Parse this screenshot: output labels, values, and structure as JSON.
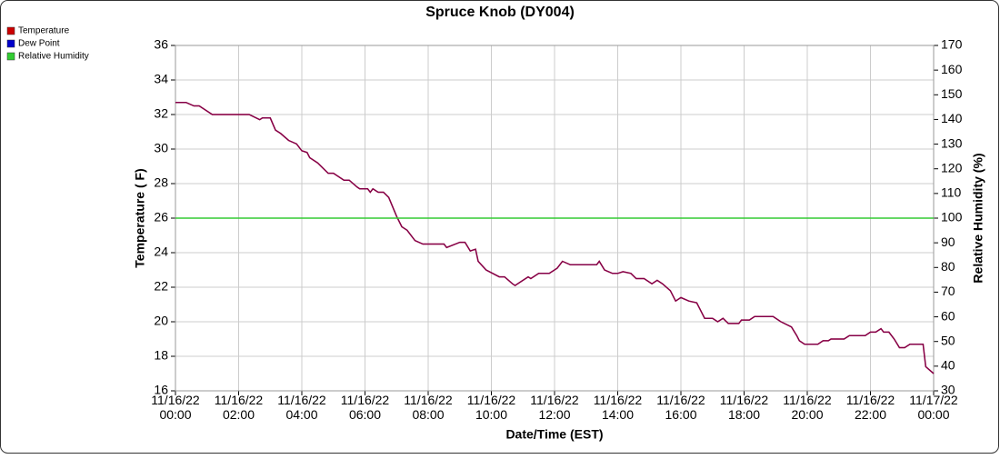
{
  "chart_data": {
    "type": "line",
    "title": "Spruce Knob (DY004)",
    "x_label": "Date/Time (EST)",
    "y_label": "Temperature ( F)",
    "y2_label": "Relative Humidity (%)",
    "x": [
      "11/16/22 00:00",
      "11/16/22 00:20",
      "11/16/22 00:35",
      "11/16/22 00:45",
      "11/16/22 01:10",
      "11/16/22 02:20",
      "11/16/22 02:40",
      "11/16/22 02:45",
      "11/16/22 03:00",
      "11/16/22 03:10",
      "11/16/22 03:20",
      "11/16/22 03:35",
      "11/16/22 03:50",
      "11/16/22 04:00",
      "11/16/22 04:10",
      "11/16/22 04:15",
      "11/16/22 04:30",
      "11/16/22 04:50",
      "11/16/22 05:00",
      "11/16/22 05:20",
      "11/16/22 05:30",
      "11/16/22 05:45",
      "11/16/22 05:50",
      "11/16/22 06:05",
      "11/16/22 06:10",
      "11/16/22 06:15",
      "11/16/22 06:25",
      "11/16/22 06:35",
      "11/16/22 06:45",
      "11/16/22 07:00",
      "11/16/22 07:10",
      "11/16/22 07:20",
      "11/16/22 07:35",
      "11/16/22 07:50",
      "11/16/22 08:30",
      "11/16/22 08:35",
      "11/16/22 09:00",
      "11/16/22 09:10",
      "11/16/22 09:20",
      "11/16/22 09:30",
      "11/16/22 09:35",
      "11/16/22 09:50",
      "11/16/22 10:15",
      "11/16/22 10:25",
      "11/16/22 10:40",
      "11/16/22 10:45",
      "11/16/22 10:55",
      "11/16/22 11:10",
      "11/16/22 11:15",
      "11/16/22 11:30",
      "11/16/22 11:50",
      "11/16/22 12:05",
      "11/16/22 12:15",
      "11/16/22 12:30",
      "11/16/22 13:20",
      "11/16/22 13:25",
      "11/16/22 13:35",
      "11/16/22 13:50",
      "11/16/22 14:00",
      "11/16/22 14:10",
      "11/16/22 14:25",
      "11/16/22 14:35",
      "11/16/22 14:50",
      "11/16/22 15:05",
      "11/16/22 15:15",
      "11/16/22 15:25",
      "11/16/22 15:40",
      "11/16/22 15:50",
      "11/16/22 16:00",
      "11/16/22 16:15",
      "11/16/22 16:30",
      "11/16/22 16:35",
      "11/16/22 16:45",
      "11/16/22 17:00",
      "11/16/22 17:10",
      "11/16/22 17:20",
      "11/16/22 17:30",
      "11/16/22 17:50",
      "11/16/22 17:55",
      "11/16/22 18:10",
      "11/16/22 18:20",
      "11/16/22 18:55",
      "11/16/22 19:10",
      "11/16/22 19:30",
      "11/16/22 19:40",
      "11/16/22 19:45",
      "11/16/22 19:55",
      "11/16/22 20:20",
      "11/16/22 20:30",
      "11/16/22 20:40",
      "11/16/22 20:45",
      "11/16/22 21:10",
      "11/16/22 21:20",
      "11/16/22 21:50",
      "11/16/22 22:00",
      "11/16/22 22:10",
      "11/16/22 22:20",
      "11/16/22 22:25",
      "11/16/22 22:35",
      "11/16/22 22:45",
      "11/16/22 22:55",
      "11/16/22 23:05",
      "11/16/22 23:15",
      "11/16/22 23:40",
      "11/16/22 23:45",
      "11/17/22 00:00"
    ],
    "series": [
      {
        "name": "Temperature",
        "color": "#cc0000",
        "values": [
          32.7,
          32.7,
          32.5,
          32.5,
          32.0,
          32.0,
          31.7,
          31.8,
          31.8,
          31.1,
          30.9,
          30.5,
          30.3,
          29.9,
          29.8,
          29.5,
          29.2,
          28.6,
          28.6,
          28.2,
          28.2,
          27.8,
          27.7,
          27.7,
          27.5,
          27.7,
          27.5,
          27.5,
          27.2,
          26.1,
          25.5,
          25.3,
          24.7,
          24.5,
          24.5,
          24.3,
          24.6,
          24.6,
          24.1,
          24.2,
          23.5,
          23.0,
          22.6,
          22.6,
          22.2,
          22.1,
          22.3,
          22.6,
          22.5,
          22.8,
          22.8,
          23.1,
          23.5,
          23.3,
          23.3,
          23.5,
          23.0,
          22.8,
          22.8,
          22.9,
          22.8,
          22.5,
          22.5,
          22.2,
          22.4,
          22.2,
          21.8,
          21.2,
          21.4,
          21.2,
          21.1,
          20.8,
          20.2,
          20.2,
          20.0,
          20.2,
          19.9,
          19.9,
          20.1,
          20.1,
          20.3,
          20.3,
          20.0,
          19.7,
          19.2,
          18.9,
          18.7,
          18.7,
          18.9,
          18.9,
          19.0,
          19.0,
          19.2,
          19.2,
          19.4,
          19.4,
          19.6,
          19.4,
          19.4,
          19.0,
          18.5,
          18.5,
          18.7,
          18.7,
          17.4,
          17.0
        ]
      },
      {
        "name": "Dew Point",
        "color": "#0000cc",
        "values": [
          32.7,
          32.7,
          32.5,
          32.5,
          32.0,
          32.0,
          31.7,
          31.8,
          31.8,
          31.1,
          30.9,
          30.5,
          30.3,
          29.9,
          29.8,
          29.5,
          29.2,
          28.6,
          28.6,
          28.2,
          28.2,
          27.8,
          27.7,
          27.7,
          27.5,
          27.7,
          27.5,
          27.5,
          27.2,
          26.1,
          25.5,
          25.3,
          24.7,
          24.5,
          24.5,
          24.3,
          24.6,
          24.6,
          24.1,
          24.2,
          23.5,
          23.0,
          22.6,
          22.6,
          22.2,
          22.1,
          22.3,
          22.6,
          22.5,
          22.8,
          22.8,
          23.1,
          23.5,
          23.3,
          23.3,
          23.5,
          23.0,
          22.8,
          22.8,
          22.9,
          22.8,
          22.5,
          22.5,
          22.2,
          22.4,
          22.2,
          21.8,
          21.2,
          21.4,
          21.2,
          21.1,
          20.8,
          20.2,
          20.2,
          20.0,
          20.2,
          19.9,
          19.9,
          20.1,
          20.1,
          20.3,
          20.3,
          20.0,
          19.7,
          19.2,
          18.9,
          18.7,
          18.7,
          18.9,
          18.9,
          19.0,
          19.0,
          19.2,
          19.2,
          19.4,
          19.4,
          19.6,
          19.4,
          19.4,
          19.0,
          18.5,
          18.5,
          18.7,
          18.7,
          17.4,
          17.0
        ]
      },
      {
        "name": "Relative Humidity",
        "color": "#33cc33",
        "axis": "y2",
        "x": [
          "11/16/22 00:00",
          "11/17/22 00:00"
        ],
        "values": [
          100,
          100
        ]
      }
    ],
    "xlim": [
      "11/16/22 00:00",
      "11/17/22 00:00"
    ],
    "xticks": [
      "11/16/22 00:00",
      "11/16/22 02:00",
      "11/16/22 04:00",
      "11/16/22 06:00",
      "11/16/22 08:00",
      "11/16/22 10:00",
      "11/16/22 12:00",
      "11/16/22 14:00",
      "11/16/22 16:00",
      "11/16/22 18:00",
      "11/16/22 20:00",
      "11/16/22 22:00",
      "11/17/22 00:00"
    ],
    "ylim": [
      16,
      36
    ],
    "yticks": [
      16,
      18,
      20,
      22,
      24,
      26,
      28,
      30,
      32,
      34,
      36
    ],
    "y2lim": [
      30,
      170
    ],
    "y2ticks": [
      30,
      40,
      50,
      60,
      70,
      80,
      90,
      100,
      110,
      120,
      130,
      140,
      150,
      160,
      170
    ],
    "grid": true,
    "legend": "top-left"
  }
}
